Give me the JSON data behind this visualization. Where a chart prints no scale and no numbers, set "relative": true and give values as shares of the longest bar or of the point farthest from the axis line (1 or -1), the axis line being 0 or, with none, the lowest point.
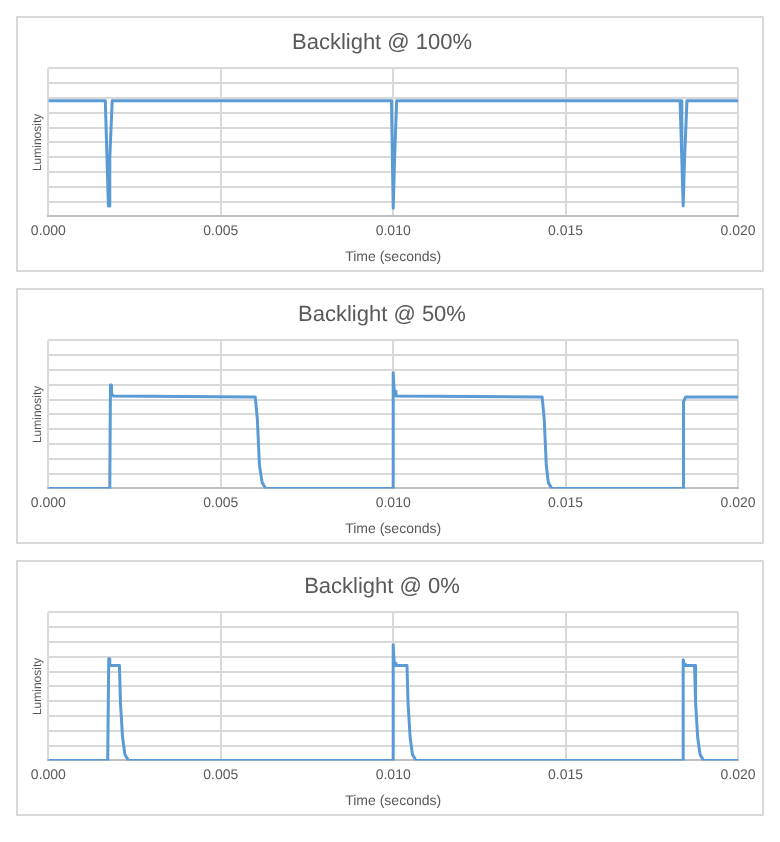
{
  "chart_data": [
    {
      "type": "line",
      "title": "Backlight @ 100%",
      "xlabel": "Time (seconds)",
      "ylabel": "Luminosity",
      "relative": true,
      "color": "#5b9bd5",
      "marker": "none",
      "grid": true,
      "xlim": [
        0,
        0.02
      ],
      "xticks": [
        {
          "value": 0,
          "label": "0.000"
        },
        {
          "value": 0.005,
          "label": "0.005"
        },
        {
          "value": 0.01,
          "label": "0.010"
        },
        {
          "value": 0.015,
          "label": "0.015"
        },
        {
          "value": 0.02,
          "label": "0.020"
        }
      ],
      "x": [
        0,
        0.00165,
        0.0017,
        0.00174,
        0.00178,
        0.00185,
        0.00995,
        0.01,
        0.01004,
        0.0101,
        0.01832,
        0.01837,
        0.01841,
        0.01845,
        0.01852,
        0.02
      ],
      "values": [
        1,
        1,
        0.5,
        0.09,
        0.5,
        1,
        1,
        0.07,
        0.5,
        1,
        1,
        0.5,
        0.09,
        0.5,
        1,
        1
      ]
    },
    {
      "type": "line",
      "title": "Backlight @ 50%",
      "xlabel": "Time (seconds)",
      "ylabel": "Luminosity",
      "relative": true,
      "color": "#5b9bd5",
      "marker": "none",
      "grid": true,
      "xlim": [
        0,
        0.02
      ],
      "xticks": [
        {
          "value": 0,
          "label": "0.000"
        },
        {
          "value": 0.005,
          "label": "0.005"
        },
        {
          "value": 0.01,
          "label": "0.010"
        },
        {
          "value": 0.015,
          "label": "0.015"
        },
        {
          "value": 0.02,
          "label": "0.020"
        }
      ],
      "x": [
        0,
        0.00178,
        0.0018,
        0.00183,
        0.00188,
        0.006,
        0.00606,
        0.00612,
        0.0062,
        0.0063,
        0.00998,
        0.01,
        0.01003,
        0.01008,
        0.01432,
        0.01438,
        0.01444,
        0.0145,
        0.0146,
        0.01838,
        0.01842,
        0.01848,
        0.02
      ],
      "values": [
        0,
        0,
        0.895,
        0.82,
        0.8,
        0.79,
        0.6,
        0.2,
        0.05,
        0,
        0,
        1,
        0.84,
        0.8,
        0.79,
        0.6,
        0.2,
        0.05,
        0,
        0,
        0.75,
        0.79,
        0.79
      ]
    },
    {
      "type": "line",
      "title": "Backlight @ 0%",
      "xlabel": "Time (seconds)",
      "ylabel": "Luminosity",
      "relative": true,
      "color": "#5b9bd5",
      "marker": "none",
      "grid": true,
      "xlim": [
        0,
        0.02
      ],
      "xticks": [
        {
          "value": 0,
          "label": "0.000"
        },
        {
          "value": 0.005,
          "label": "0.005"
        },
        {
          "value": 0.01,
          "label": "0.010"
        },
        {
          "value": 0.015,
          "label": "0.015"
        },
        {
          "value": 0.02,
          "label": "0.020"
        }
      ],
      "x": [
        0,
        0.00172,
        0.00175,
        0.00178,
        0.00182,
        0.00206,
        0.00209,
        0.00215,
        0.00222,
        0.00232,
        0.00998,
        0.01,
        0.01003,
        0.01008,
        0.0104,
        0.01043,
        0.01049,
        0.01056,
        0.01066,
        0.01838,
        0.01841,
        0.01844,
        0.01848,
        0.01874,
        0.01877,
        0.01883,
        0.0189,
        0.019,
        0.02
      ],
      "values": [
        0,
        0,
        0.88,
        0.83,
        0.82,
        0.82,
        0.5,
        0.2,
        0.05,
        0,
        0,
        1,
        0.84,
        0.82,
        0.82,
        0.5,
        0.2,
        0.05,
        0,
        0,
        0.87,
        0.83,
        0.82,
        0.82,
        0.5,
        0.2,
        0.05,
        0,
        0
      ]
    }
  ]
}
